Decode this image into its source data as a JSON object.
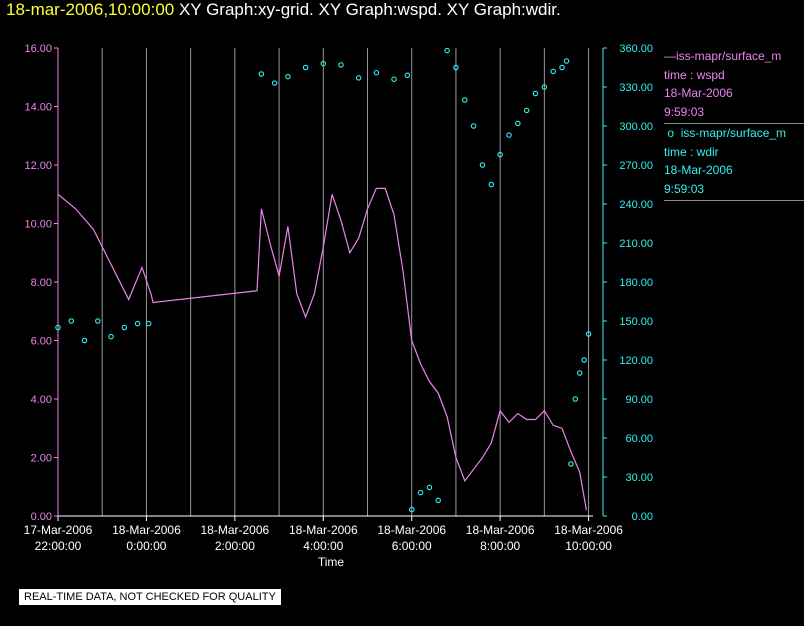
{
  "header": {
    "timestamp": "18-mar-2006,10:00:00",
    "graph_titles": "XY Graph:xy-grid.  XY Graph:wspd.  XY Graph:wdir."
  },
  "colors": {
    "wspd": "#ee82ee",
    "wdir": "#33f0f0",
    "grid": "#9a9a9a",
    "axis": "#ffffff",
    "background": "#000000",
    "timestamp": "#ffff33"
  },
  "legend": {
    "series1": {
      "name": "iss-mapr/surface_m",
      "line2": "time : wspd",
      "line3": "18-Mar-2006",
      "line4": "9:59:03"
    },
    "series2": {
      "name": "iss-mapr/surface_m",
      "line2": "time : wdir",
      "line3": "18-Mar-2006",
      "line4": "9:59:03"
    }
  },
  "footer_note": "REAL-TIME DATA, NOT CHECKED FOR QUALITY",
  "chart_data": {
    "type": "line",
    "xlabel": "Time",
    "x_range": [
      "17-Mar-2006 21:50",
      "18-Mar-2006 10:05"
    ],
    "x_ticks": [
      {
        "date": "17-Mar-2006",
        "time": "22:00:00"
      },
      {
        "date": "18-Mar-2006",
        "time": "0:00:00"
      },
      {
        "date": "18-Mar-2006",
        "time": "2:00:00"
      },
      {
        "date": "18-Mar-2006",
        "time": "4:00:00"
      },
      {
        "date": "18-Mar-2006",
        "time": "6:00:00"
      },
      {
        "date": "18-Mar-2006",
        "time": "8:00:00"
      },
      {
        "date": "18-Mar-2006",
        "time": "10:00:00"
      }
    ],
    "left_axis": {
      "ylim": [
        0,
        16
      ],
      "ticks": [
        "0.00",
        "2.00",
        "4.00",
        "6.00",
        "8.00",
        "10.00",
        "12.00",
        "14.00",
        "16.00"
      ]
    },
    "right_axis": {
      "ylim": [
        0,
        360
      ],
      "ticks": [
        "0.00",
        "30.00",
        "60.00",
        "90.00",
        "120.00",
        "150.00",
        "180.00",
        "210.00",
        "240.00",
        "270.00",
        "300.00",
        "330.00",
        "360.00"
      ]
    },
    "vertical_grid_hours": [
      -1,
      0,
      1,
      2,
      3,
      4,
      5,
      6,
      7,
      8,
      9,
      10
    ],
    "grid": true,
    "legend_position": "right",
    "series": [
      {
        "name": "wspd",
        "axis": "left",
        "style": "line",
        "points": [
          [
            -2.0,
            11.0
          ],
          [
            -1.6,
            10.5
          ],
          [
            -1.2,
            9.8
          ],
          [
            -0.8,
            8.6
          ],
          [
            -0.4,
            7.4
          ],
          [
            -0.1,
            8.5
          ],
          [
            0.1,
            7.6
          ],
          [
            0.15,
            7.3
          ],
          [
            2.5,
            7.7
          ],
          [
            2.6,
            10.5
          ],
          [
            2.8,
            9.3
          ],
          [
            3.0,
            8.2
          ],
          [
            3.2,
            9.9
          ],
          [
            3.4,
            7.6
          ],
          [
            3.6,
            6.8
          ],
          [
            3.8,
            7.6
          ],
          [
            4.0,
            9.2
          ],
          [
            4.2,
            11.0
          ],
          [
            4.4,
            10.1
          ],
          [
            4.6,
            9.0
          ],
          [
            4.8,
            9.5
          ],
          [
            5.0,
            10.5
          ],
          [
            5.2,
            11.2
          ],
          [
            5.4,
            11.2
          ],
          [
            5.6,
            10.3
          ],
          [
            5.8,
            8.4
          ],
          [
            6.0,
            6.0
          ],
          [
            6.2,
            5.2
          ],
          [
            6.4,
            4.6
          ],
          [
            6.6,
            4.2
          ],
          [
            6.8,
            3.4
          ],
          [
            7.0,
            2.0
          ],
          [
            7.2,
            1.2
          ],
          [
            7.4,
            1.6
          ],
          [
            7.6,
            2.0
          ],
          [
            7.8,
            2.5
          ],
          [
            8.0,
            3.6
          ],
          [
            8.2,
            3.2
          ],
          [
            8.4,
            3.5
          ],
          [
            8.6,
            3.3
          ],
          [
            8.8,
            3.3
          ],
          [
            9.0,
            3.6
          ],
          [
            9.2,
            3.1
          ],
          [
            9.4,
            3.0
          ],
          [
            9.6,
            2.2
          ],
          [
            9.8,
            1.5
          ],
          [
            9.95,
            0.2
          ]
        ]
      },
      {
        "name": "wdir",
        "axis": "right",
        "style": "scatter",
        "points": [
          [
            -2.0,
            145
          ],
          [
            -1.7,
            150
          ],
          [
            -1.4,
            135
          ],
          [
            -1.1,
            150
          ],
          [
            -0.8,
            138
          ],
          [
            -0.5,
            145
          ],
          [
            -0.2,
            148
          ],
          [
            0.05,
            148
          ],
          [
            2.6,
            340
          ],
          [
            2.9,
            333
          ],
          [
            3.2,
            338
          ],
          [
            3.6,
            345
          ],
          [
            4.0,
            348
          ],
          [
            4.4,
            347
          ],
          [
            4.8,
            337
          ],
          [
            5.2,
            341
          ],
          [
            5.6,
            336
          ],
          [
            5.9,
            339
          ],
          [
            6.0,
            5
          ],
          [
            6.2,
            18
          ],
          [
            6.4,
            22
          ],
          [
            6.6,
            12
          ],
          [
            6.8,
            358
          ],
          [
            7.0,
            345
          ],
          [
            7.2,
            320
          ],
          [
            7.4,
            300
          ],
          [
            7.6,
            270
          ],
          [
            7.8,
            255
          ],
          [
            8.0,
            278
          ],
          [
            8.2,
            293
          ],
          [
            8.4,
            302
          ],
          [
            8.6,
            312
          ],
          [
            8.8,
            325
          ],
          [
            9.0,
            330
          ],
          [
            9.2,
            342
          ],
          [
            9.4,
            345
          ],
          [
            9.5,
            350
          ],
          [
            9.6,
            40
          ],
          [
            9.7,
            90
          ],
          [
            9.8,
            110
          ],
          [
            9.9,
            120
          ],
          [
            10.0,
            140
          ]
        ]
      }
    ]
  }
}
